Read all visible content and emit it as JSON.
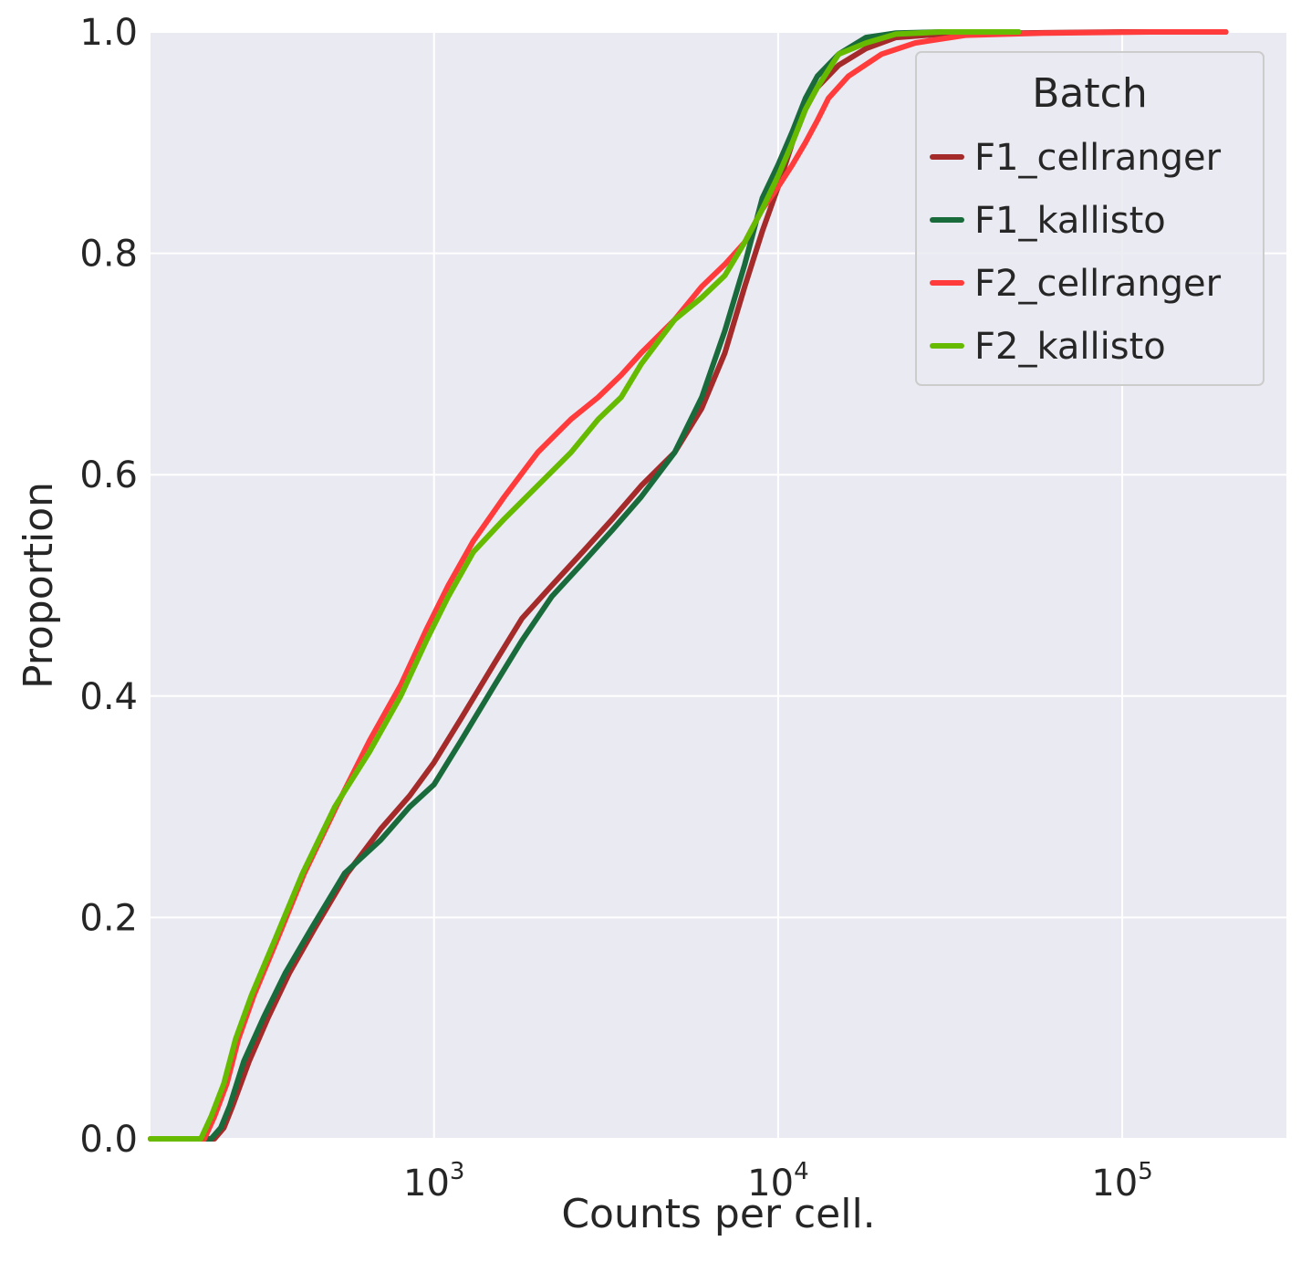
{
  "chart_data": {
    "type": "line",
    "subtype": "ecdf",
    "xlabel": "Counts per cell.",
    "ylabel": "Proportion",
    "xscale": "log",
    "xlim": [
      150,
      300000
    ],
    "ylim": [
      0,
      1.0
    ],
    "x_ticks": [
      {
        "value": 1000,
        "base": "10",
        "exp": "3"
      },
      {
        "value": 10000,
        "base": "10",
        "exp": "4"
      },
      {
        "value": 100000,
        "base": "10",
        "exp": "5"
      }
    ],
    "y_ticks": [
      {
        "value": 0.0,
        "label": "0.0"
      },
      {
        "value": 0.2,
        "label": "0.2"
      },
      {
        "value": 0.4,
        "label": "0.4"
      },
      {
        "value": 0.6,
        "label": "0.6"
      },
      {
        "value": 0.8,
        "label": "0.8"
      },
      {
        "value": 1.0,
        "label": "1.0"
      }
    ],
    "grid": true,
    "background": "#eaeaf2",
    "legend": {
      "title": "Batch",
      "placement": "top-right"
    },
    "series": [
      {
        "name": "F1_cellranger",
        "color": "#a52a2a",
        "x": [
          150,
          230,
          245,
          260,
          290,
          330,
          380,
          450,
          560,
          700,
          850,
          1000,
          1200,
          1500,
          1800,
          2200,
          2700,
          3300,
          4000,
          5000,
          6000,
          7000,
          8000,
          9000,
          10000,
          11000,
          12000,
          13000,
          15000,
          18000,
          22000,
          30000,
          50000,
          100000,
          200000
        ],
        "y": [
          0,
          0,
          0.01,
          0.03,
          0.07,
          0.11,
          0.15,
          0.19,
          0.24,
          0.28,
          0.31,
          0.34,
          0.38,
          0.43,
          0.47,
          0.5,
          0.53,
          0.56,
          0.59,
          0.62,
          0.66,
          0.71,
          0.77,
          0.82,
          0.86,
          0.9,
          0.93,
          0.95,
          0.97,
          0.985,
          0.995,
          0.998,
          0.999,
          1.0,
          1.0
        ]
      },
      {
        "name": "F1_kallisto",
        "color": "#1a6b3c",
        "x": [
          150,
          225,
          240,
          255,
          280,
          320,
          370,
          440,
          550,
          700,
          850,
          1000,
          1200,
          1500,
          1800,
          2200,
          2700,
          3300,
          4000,
          5000,
          6000,
          7000,
          8000,
          9000,
          10000,
          11000,
          12000,
          13000,
          15000,
          18000,
          22000,
          30000,
          50000
        ],
        "y": [
          0,
          0,
          0.01,
          0.03,
          0.07,
          0.11,
          0.15,
          0.19,
          0.24,
          0.27,
          0.3,
          0.32,
          0.36,
          0.41,
          0.45,
          0.49,
          0.52,
          0.55,
          0.58,
          0.62,
          0.67,
          0.73,
          0.79,
          0.85,
          0.88,
          0.91,
          0.94,
          0.96,
          0.98,
          0.995,
          0.999,
          1.0,
          1.0
        ]
      },
      {
        "name": "F2_cellranger",
        "color": "#ff3b3b",
        "x": [
          150,
          215,
          230,
          250,
          270,
          300,
          350,
          420,
          520,
          650,
          800,
          950,
          1100,
          1300,
          1600,
          2000,
          2500,
          3000,
          3500,
          4000,
          5000,
          6000,
          7000,
          8000,
          9000,
          10000,
          11000,
          12000,
          13000,
          14000,
          16000,
          20000,
          25000,
          35000,
          60000,
          120000,
          200000
        ],
        "y": [
          0,
          0,
          0.02,
          0.05,
          0.09,
          0.13,
          0.18,
          0.24,
          0.3,
          0.36,
          0.41,
          0.46,
          0.5,
          0.54,
          0.58,
          0.62,
          0.65,
          0.67,
          0.69,
          0.71,
          0.74,
          0.77,
          0.79,
          0.81,
          0.84,
          0.86,
          0.88,
          0.9,
          0.92,
          0.94,
          0.96,
          0.98,
          0.99,
          0.997,
          0.999,
          1.0,
          1.0
        ]
      },
      {
        "name": "F2_kallisto",
        "color": "#66bb00",
        "x": [
          150,
          210,
          225,
          245,
          265,
          295,
          345,
          415,
          515,
          650,
          800,
          950,
          1100,
          1300,
          1600,
          2000,
          2500,
          3000,
          3500,
          4000,
          5000,
          6000,
          7000,
          8000,
          9000,
          10000,
          11000,
          12000,
          13000,
          15000,
          18000,
          22000,
          30000,
          50000
        ],
        "y": [
          0,
          0,
          0.02,
          0.05,
          0.09,
          0.13,
          0.18,
          0.24,
          0.3,
          0.35,
          0.4,
          0.45,
          0.49,
          0.53,
          0.56,
          0.59,
          0.62,
          0.65,
          0.67,
          0.7,
          0.74,
          0.76,
          0.78,
          0.81,
          0.84,
          0.87,
          0.9,
          0.93,
          0.95,
          0.98,
          0.99,
          0.998,
          1.0,
          1.0
        ]
      }
    ]
  }
}
